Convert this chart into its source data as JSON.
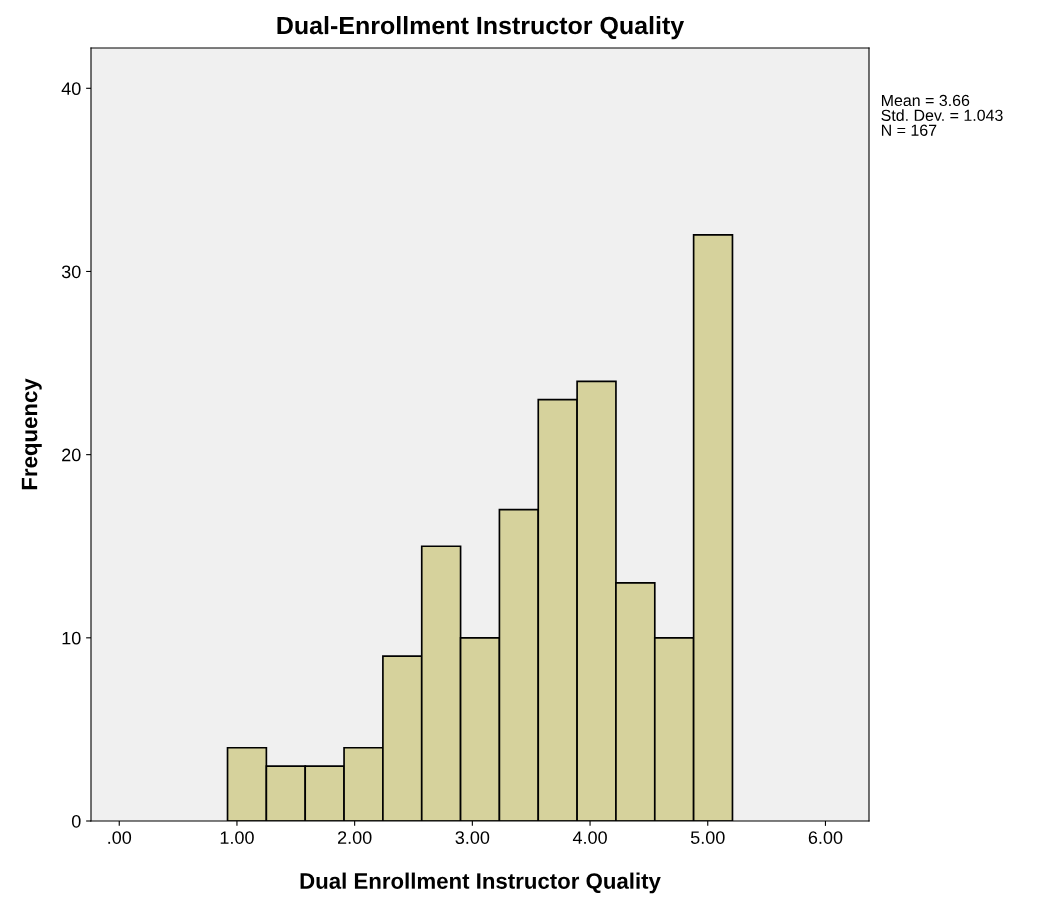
{
  "chart_data": {
    "type": "histogram",
    "title": "Dual-Enrollment Instructor Quality",
    "xlabel": "Dual Enrollment Instructor Quality",
    "ylabel": "Frequency",
    "bins": [
      0.92,
      1.25,
      1.58,
      1.91,
      2.24,
      2.57,
      2.9,
      3.23,
      3.56,
      3.89,
      4.22,
      4.55,
      4.88,
      5.21
    ],
    "values": [
      4,
      3,
      3,
      4,
      9,
      15,
      10,
      17,
      23,
      24,
      13,
      10,
      32
    ],
    "color": "#d6d29c",
    "xlim": [
      -0.24,
      6.37
    ],
    "ylim": [
      0,
      42.2
    ],
    "xticks": [
      {
        "value": 0,
        "label": ".00"
      },
      {
        "value": 1,
        "label": "1.00"
      },
      {
        "value": 2,
        "label": "2.00"
      },
      {
        "value": 3,
        "label": "3.00"
      },
      {
        "value": 4,
        "label": "4.00"
      },
      {
        "value": 5,
        "label": "5.00"
      },
      {
        "value": 6,
        "label": "6.00"
      }
    ],
    "yticks": [
      0,
      10,
      20,
      30,
      40
    ],
    "annotations": [
      "Mean = 3.66\nStd. Dev. = 1.043\nN = 167"
    ],
    "grid": false
  }
}
